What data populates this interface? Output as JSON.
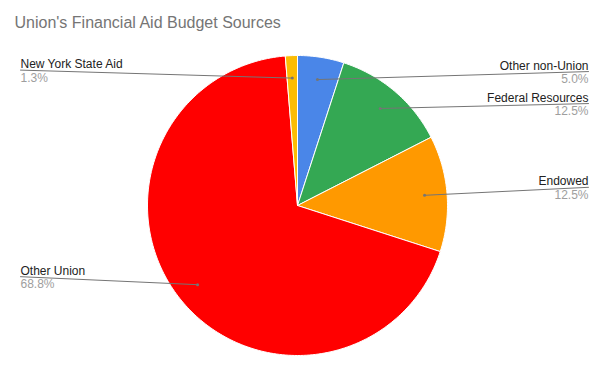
{
  "chart_data": {
    "type": "pie",
    "title": "Union's Financial Aid Budget Sources",
    "categories": [
      "Other non-Union",
      "Federal Resources",
      "Endowed",
      "Other Union",
      "New York State Aid"
    ],
    "values": [
      5.0,
      12.5,
      12.5,
      68.8,
      1.3
    ],
    "value_labels": [
      "5.0%",
      "12.5%",
      "12.5%",
      "68.8%",
      "1.3%"
    ],
    "colors": [
      "#4a86e8",
      "#34a853",
      "#ff9900",
      "#ff0000",
      "#fbbc04"
    ],
    "data_labels": true
  }
}
